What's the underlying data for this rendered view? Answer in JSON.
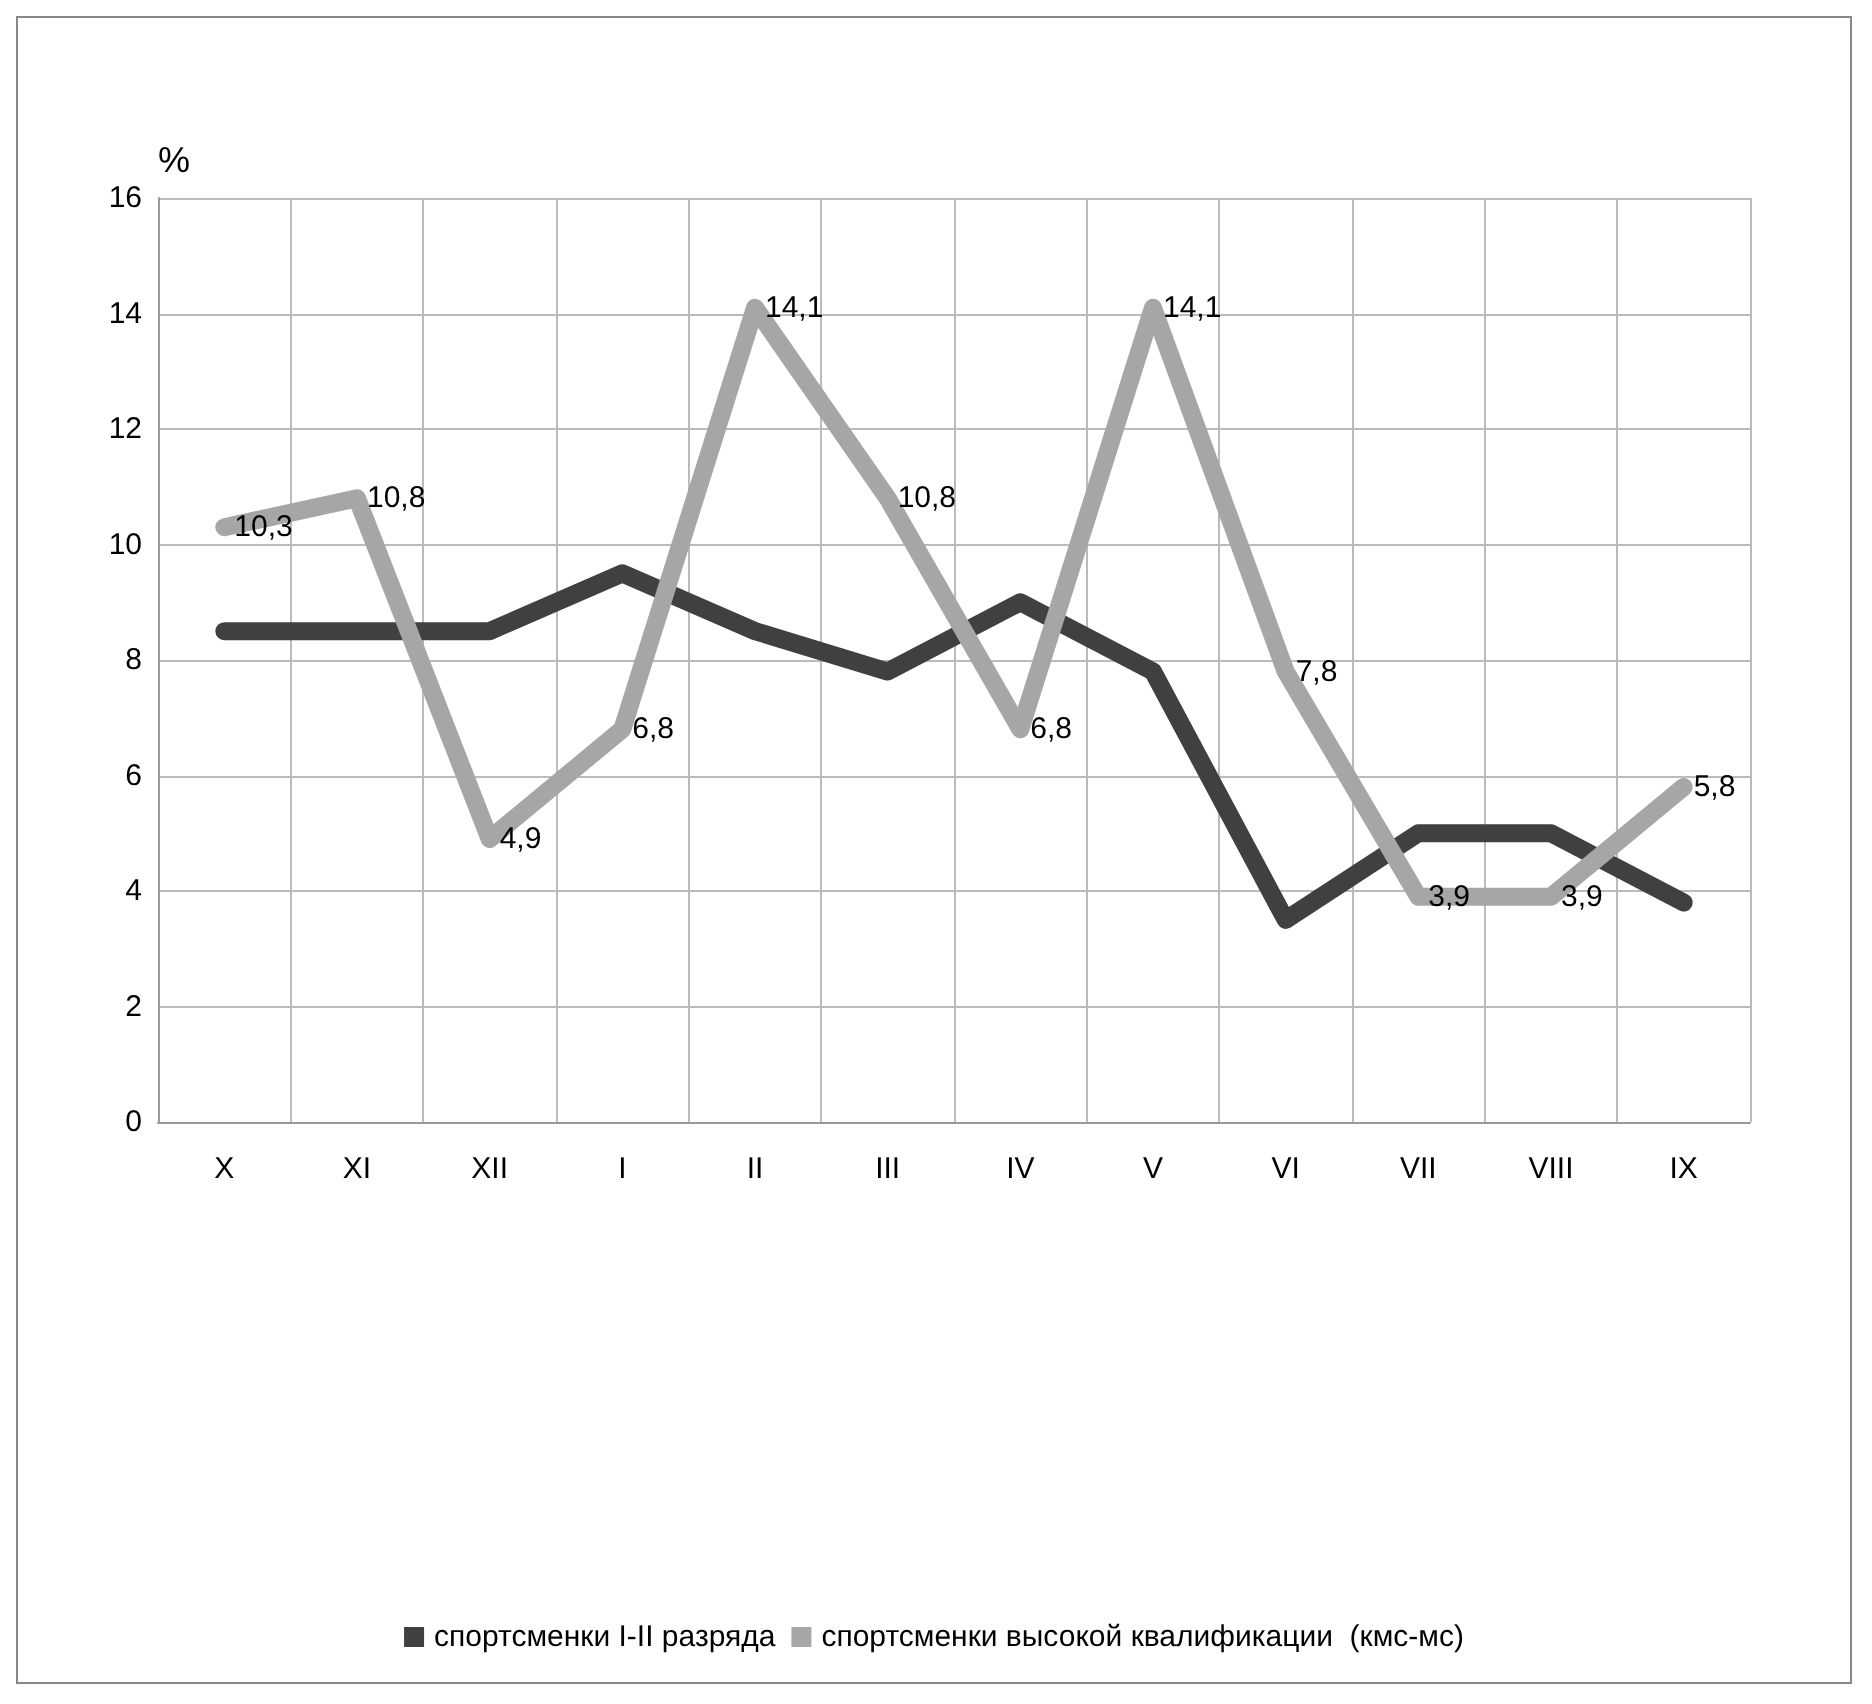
{
  "chart_data": {
    "type": "line",
    "ylabel": "%",
    "categories": [
      "X",
      "XI",
      "XII",
      "I",
      "II",
      "III",
      "IV",
      "V",
      "VI",
      "VII",
      "VIII",
      "IX"
    ],
    "series": [
      {
        "name": "спортсменки I-II разряда",
        "color": "#404040",
        "values": [
          8.5,
          8.5,
          8.5,
          9.5,
          8.5,
          7.8,
          9.0,
          7.8,
          3.5,
          5.0,
          5.0,
          3.8
        ]
      },
      {
        "name": "спортсменки высокой квалификации  (кмс-мс)",
        "color": "#a6a6a6",
        "values": [
          10.3,
          10.8,
          4.9,
          6.8,
          14.1,
          10.8,
          6.8,
          14.1,
          7.8,
          3.9,
          3.9,
          5.8
        ],
        "value_labels": [
          "10,3",
          "10,8",
          "4,9",
          "6,8",
          "14,1",
          "10,8",
          "6,8",
          "14,1",
          "7,8",
          "3,9",
          "3,9",
          "5,8"
        ]
      }
    ],
    "ylim": [
      0,
      16
    ],
    "yticks": [
      0,
      2,
      4,
      6,
      8,
      10,
      12,
      14,
      16
    ],
    "grid": true,
    "legend": "bottom",
    "marker": "none",
    "line_style": "solid"
  }
}
